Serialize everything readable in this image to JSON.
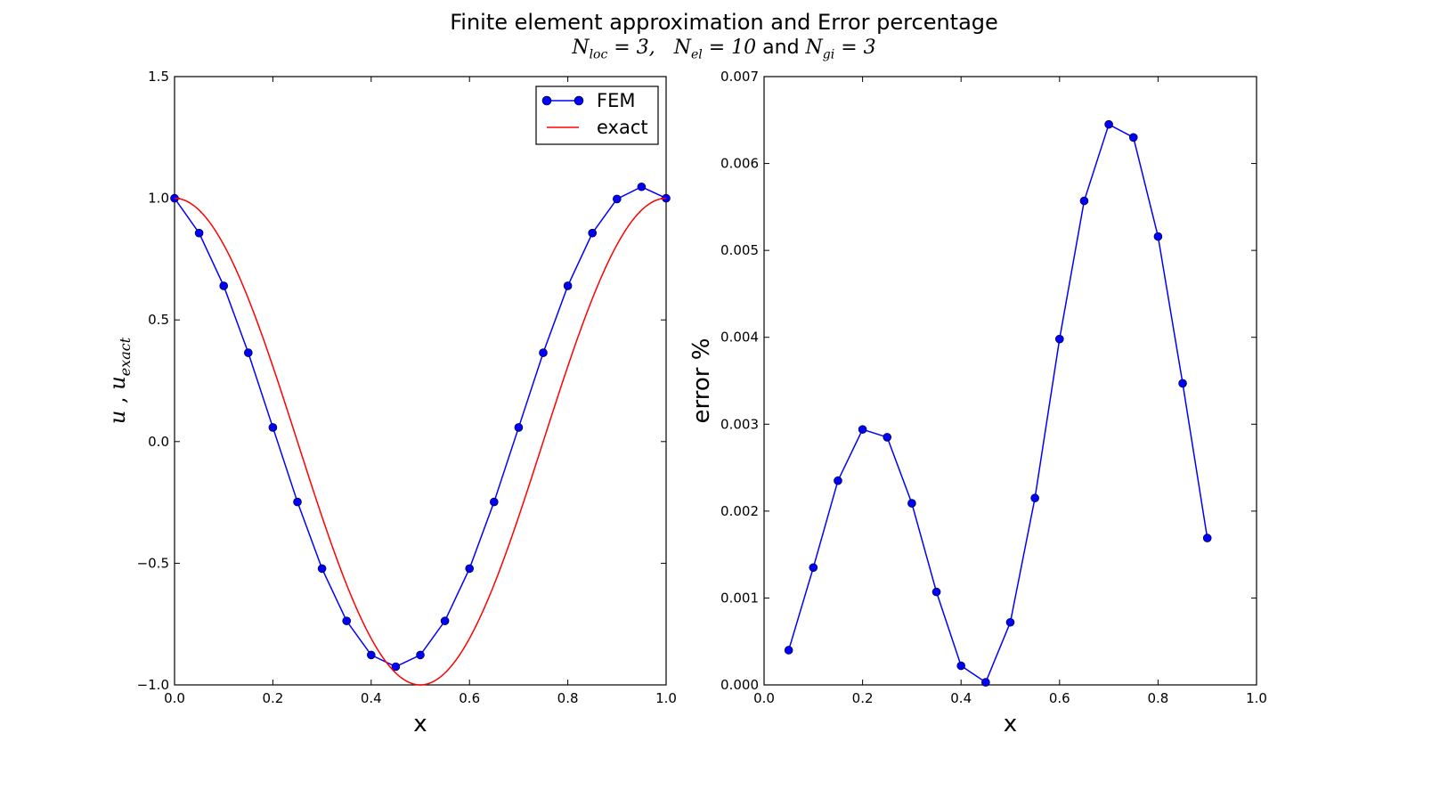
{
  "title": {
    "main": "Finite element approximation and Error percentage",
    "sub": {
      "p1_sym": "N",
      "p1_sub": "loc",
      "p1_val": " = 3,",
      "p2_sym": "N",
      "p2_sub": "el",
      "p2_val": " = 10",
      "and": " and ",
      "p3_sym": "N",
      "p3_sub": "gi",
      "p3_val": " = 3"
    }
  },
  "colors": {
    "fem": "#0000ff",
    "exact": "#ff0000",
    "axes": "#000000"
  },
  "chart_data": [
    {
      "type": "line",
      "xlabel": "x",
      "ylabel": {
        "u": "u",
        "sep": " , ",
        "uexact": "u",
        "uexact_sub": "exact"
      },
      "xlim": [
        0.0,
        1.0
      ],
      "ylim": [
        -1.0,
        1.5
      ],
      "xticks": [
        0.0,
        0.2,
        0.4,
        0.6,
        0.8,
        1.0
      ],
      "xtick_labels": [
        "0.0",
        "0.2",
        "0.4",
        "0.6",
        "0.8",
        "1.0"
      ],
      "yticks": [
        -1.0,
        -0.5,
        0.0,
        0.5,
        1.0,
        1.5
      ],
      "ytick_labels": [
        "−1.0",
        "−0.5",
        "0.0",
        "0.5",
        "1.0",
        "1.5"
      ],
      "legend_position": "top-right",
      "series": [
        {
          "name": "FEM",
          "style": "line-with-markers",
          "x": [
            0.0,
            0.05,
            0.1,
            0.15,
            0.2,
            0.25,
            0.3,
            0.35,
            0.4,
            0.45,
            0.5,
            0.55,
            0.6,
            0.65,
            0.7,
            0.75,
            0.8,
            0.85,
            0.9,
            0.95,
            1.0
          ],
          "y": [
            1.0,
            0.857,
            0.64,
            0.365,
            0.058,
            -0.248,
            -0.522,
            -0.737,
            -0.877,
            -0.925,
            -0.877,
            -0.737,
            -0.522,
            -0.248,
            0.058,
            0.365,
            0.64,
            0.857,
            0.997,
            1.047,
            1.0
          ]
        },
        {
          "name": "exact",
          "style": "line",
          "function": "cos(2*pi*x)",
          "x_range": [
            0.0,
            1.0
          ]
        }
      ]
    },
    {
      "type": "line",
      "xlabel": "x",
      "ylabel": "error %",
      "xlim": [
        0.0,
        1.0
      ],
      "ylim": [
        0.0,
        0.007
      ],
      "xticks": [
        0.0,
        0.2,
        0.4,
        0.6,
        0.8,
        1.0
      ],
      "xtick_labels": [
        "0.0",
        "0.2",
        "0.4",
        "0.6",
        "0.8",
        "1.0"
      ],
      "yticks": [
        0.0,
        0.001,
        0.002,
        0.003,
        0.004,
        0.005,
        0.006,
        0.007
      ],
      "ytick_labels": [
        "0.000",
        "0.001",
        "0.002",
        "0.003",
        "0.004",
        "0.005",
        "0.006",
        "0.007"
      ],
      "series": [
        {
          "style": "line-with-markers",
          "x": [
            0.05,
            0.1,
            0.15,
            0.2,
            0.25,
            0.3,
            0.35,
            0.4,
            0.45,
            0.5,
            0.55,
            0.6,
            0.65,
            0.7,
            0.75,
            0.8,
            0.85,
            0.9
          ],
          "y": [
            0.0004,
            0.00135,
            0.00235,
            0.00294,
            0.00285,
            0.00209,
            0.00107,
            0.00022,
            3e-05,
            0.00072,
            0.00215,
            0.00398,
            0.00557,
            0.00645,
            0.0063,
            0.00516,
            0.00347,
            0.00169
          ]
        }
      ]
    }
  ]
}
